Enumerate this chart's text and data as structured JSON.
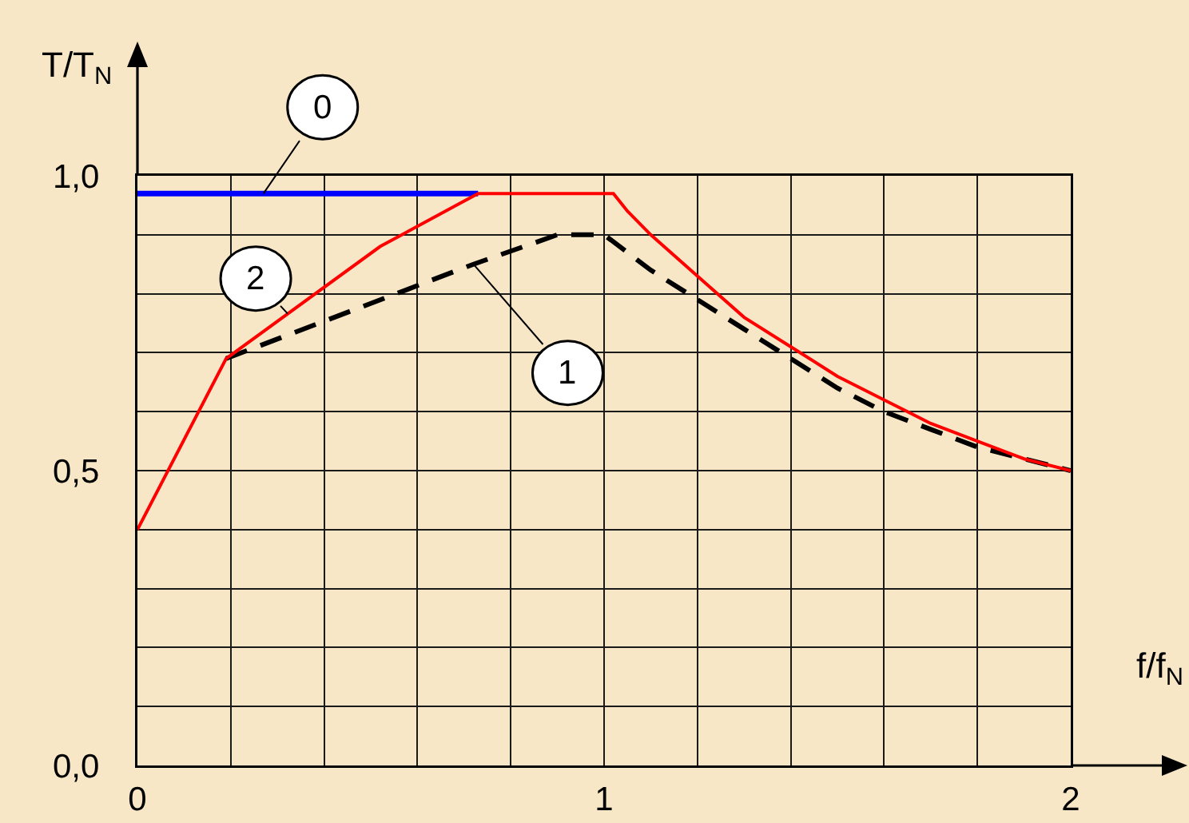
{
  "chart_data": {
    "type": "line",
    "xlabel": "f/f$_{N}$",
    "ylabel": "T/T$_{N}$",
    "xlim": [
      0,
      2
    ],
    "ylim": [
      0,
      1
    ],
    "xticks": [
      0,
      {
        "value": 0.2,
        "label": null
      },
      {
        "value": 0.4,
        "label": null
      },
      {
        "value": 0.6,
        "label": null
      },
      {
        "value": 0.8,
        "label": null
      },
      1,
      {
        "value": 1.2,
        "label": null
      },
      {
        "value": 1.4,
        "label": null
      },
      {
        "value": 1.6,
        "label": null
      },
      {
        "value": 1.8,
        "label": null
      },
      2
    ],
    "yticks": [
      {
        "value": 0,
        "label": "0,0"
      },
      {
        "value": 0.1,
        "label": null
      },
      {
        "value": 0.2,
        "label": null
      },
      {
        "value": 0.3,
        "label": null
      },
      {
        "value": 0.4,
        "label": null
      },
      {
        "value": 0.5,
        "label": "0,5"
      },
      {
        "value": 0.6,
        "label": null
      },
      {
        "value": 0.7,
        "label": null
      },
      {
        "value": 0.8,
        "label": null
      },
      {
        "value": 0.9,
        "label": null
      },
      {
        "value": 1,
        "label": "1,0"
      }
    ],
    "grid": true,
    "series": [
      {
        "name": "0",
        "color": "#0000ff",
        "line_style": "solid",
        "x": [
          0,
          0.73
        ],
        "values": [
          0.97,
          0.97
        ]
      },
      {
        "name": "1",
        "color": "#000000",
        "line_style": "dashed",
        "x": [
          0.19,
          0.72,
          0.9,
          1.0,
          1.05,
          1.1,
          1.2,
          1.3,
          1.4,
          1.5,
          1.6,
          1.7,
          1.8,
          1.9,
          2.0
        ],
        "values": [
          0.69,
          0.85,
          0.9,
          0.9,
          0.87,
          0.84,
          0.79,
          0.74,
          0.69,
          0.64,
          0.6,
          0.57,
          0.54,
          0.52,
          0.5
        ]
      },
      {
        "name": "2",
        "color": "#ff0000",
        "line_style": "solid",
        "x": [
          0,
          0.19,
          0.52,
          0.73,
          1.02,
          1.05,
          1.1,
          1.2,
          1.3,
          1.4,
          1.5,
          1.6,
          1.7,
          1.8,
          1.9,
          2.0
        ],
        "values": [
          0.4,
          0.69,
          0.88,
          0.97,
          0.97,
          0.94,
          0.9,
          0.83,
          0.76,
          0.71,
          0.66,
          0.62,
          0.58,
          0.55,
          0.52,
          0.5
        ]
      }
    ]
  }
}
